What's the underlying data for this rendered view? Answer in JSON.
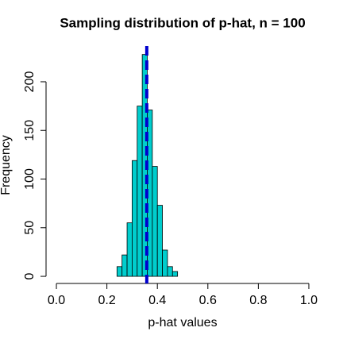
{
  "chart_data": {
    "type": "histogram",
    "title": "Sampling distribution of p-hat, n = 100",
    "xlabel": "p-hat values",
    "ylabel": "Frequency",
    "bins": [
      0.24,
      0.26,
      0.28,
      0.3,
      0.32,
      0.34,
      0.36,
      0.38,
      0.4,
      0.42,
      0.44,
      0.46,
      0.48
    ],
    "values": [
      10,
      22,
      55,
      119,
      175,
      228,
      171,
      113,
      73,
      27,
      10,
      5
    ],
    "color": "#00cdcd",
    "edgecolor": "#000000",
    "vline": {
      "value": 0.358,
      "color": "#0000cd",
      "style": "dashed"
    },
    "xlim": [
      -0.041,
      1.041
    ],
    "ylim": [
      -7.3,
      236.7
    ],
    "xticks": [
      {
        "value": 0,
        "label": "0.0"
      },
      0.2,
      0.4,
      0.6,
      0.8,
      {
        "value": 1,
        "label": "1.0"
      }
    ],
    "yticks": [
      0,
      50,
      100,
      150,
      200
    ]
  }
}
